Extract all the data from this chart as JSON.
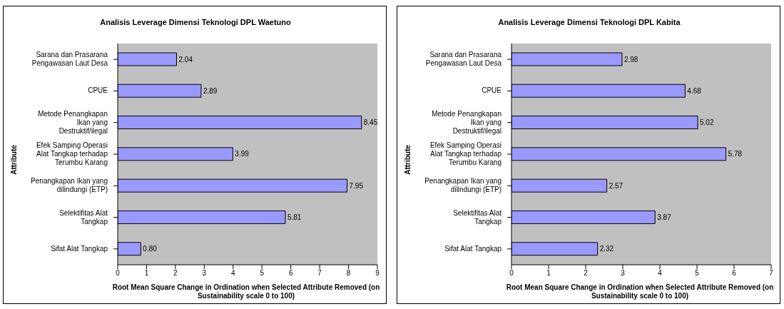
{
  "chart_data": [
    {
      "type": "bar",
      "orientation": "horizontal",
      "title": "Analisis Leverage Dimensi Teknologi DPL Waetuno",
      "xlabel": "Root Mean Square Change in Ordination when Selected Attribute Removed (on Sustainability scale 0 to 100)",
      "ylabel": "Attribute",
      "categories": [
        "Sarana dan Prasarana Pengawasan Laut Desa",
        "CPUE",
        "Metode Penangkapan Ikan yang Destruktif/ilegal",
        "Efek Samping Operasi Alat Tangkap terhadap Terumbu Karang",
        "Penangkapan Ikan yang dilindungi (ETP)",
        "Selektifitas Alat Tangkap",
        "Sifat Alat Tangkap"
      ],
      "values": [
        2.04,
        2.89,
        8.45,
        3.99,
        7.95,
        5.81,
        0.8
      ],
      "value_labels": [
        "2.04",
        "2.89",
        "8.45",
        "3.99",
        "7.95",
        "5.81",
        "0.80"
      ],
      "color": "#9999ff",
      "xlim": [
        0,
        9
      ],
      "xticks": [
        0,
        1,
        2,
        3,
        4,
        5,
        6,
        7,
        8,
        9
      ],
      "grid": false,
      "legend": false
    },
    {
      "type": "bar",
      "orientation": "horizontal",
      "title": "Analisis Leverage Dimensi Teknologi DPL Kabita",
      "xlabel": "Root Mean Square Change in Ordination when Selected Attribute Removed (on Sustainability scale 0 to 100)",
      "ylabel": "Attribute",
      "categories": [
        "Sarana dan Prasarana Pengawasan Laut Desa",
        "CPUE",
        "Metode Penangkapan Ikan yang Destruktif/ilegal",
        "Efek Samping Operasi Alat Tangkap terhadap Terumbu Karang",
        "Penangkapan Ikan yang dilindungi (ETP)",
        "Selektifitas Alat Tangkap",
        "Sifat Alat Tangkap"
      ],
      "values": [
        2.98,
        4.68,
        5.02,
        5.78,
        2.57,
        3.87,
        2.32
      ],
      "value_labels": [
        "2.98",
        "4.68",
        "5.02",
        "5.78",
        "2.57",
        "3.87",
        "2.32"
      ],
      "color": "#9999ff",
      "xlim": [
        0,
        7
      ],
      "xticks": [
        0,
        1,
        2,
        3,
        4,
        5,
        6,
        7
      ],
      "grid": false,
      "legend": false
    }
  ]
}
